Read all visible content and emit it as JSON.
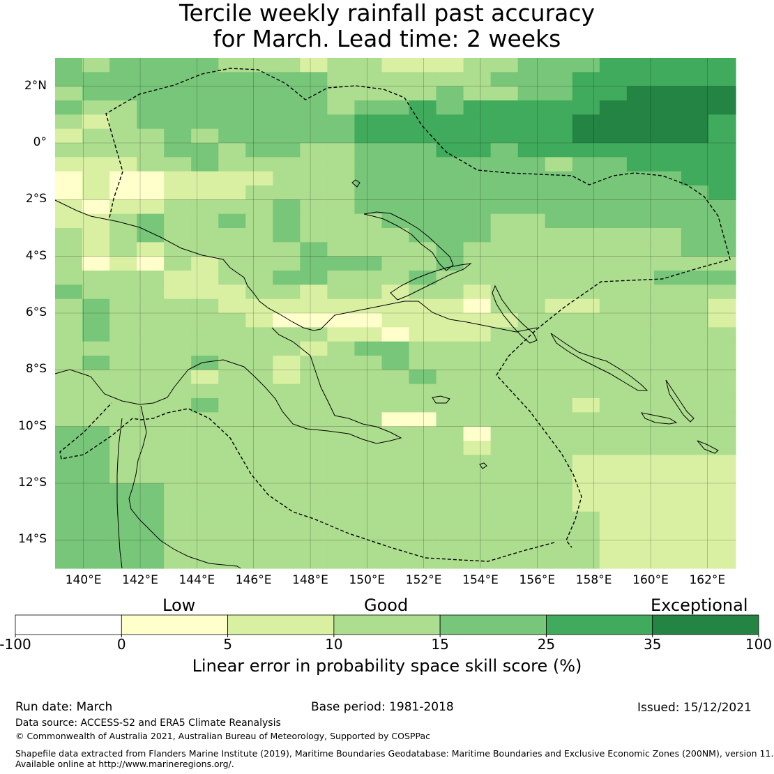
{
  "title": {
    "line1": "Tercile weekly rainfall past accuracy",
    "line2": "for March. Lead time: 2 weeks"
  },
  "map": {
    "y_axis_labels": [
      "2°N",
      "0°",
      "2°S",
      "4°S",
      "6°S",
      "8°S",
      "10°S",
      "12°S",
      "14°S"
    ],
    "x_axis_labels": [
      "140°E",
      "142°E",
      "144°E",
      "146°E",
      "148°E",
      "150°E",
      "152°E",
      "154°E",
      "156°E",
      "158°E",
      "160°E",
      "162°E"
    ],
    "lat_range": [
      -15,
      3
    ],
    "lon_range": [
      139,
      163
    ],
    "skill_rows_north_to_south": [
      "4344443332332223344455555",
      "4444444444333333444555555",
      "3444444444333343344556666",
      "4334444444344545555566666",
      "3234444444455555555666665",
      "2333434444455555555666665",
      "3333443443344455455555555",
      "2223343333344444443445555",
      "1211222233344444444444455",
      "1211222333344444444444445",
      "2122333343344444444444444",
      "2234334343334444334444444",
      "3234333343333444333333344",
      "3232333334333343333333344",
      "3121323334443343333333333",
      "3333223344333433333333444",
      "4333222332332332333333333",
      "3433332222222221332233332",
      "3433333211112222233333332",
      "3433333333221222333333333",
      "3333333332344333333333333",
      "3433343323334333333333333",
      "3333323323333433333333333",
      "3333333333333333333333333",
      "3333343333333333333233333",
      "3333333333331133333333333",
      "4433333333333331333333333",
      "4433333333333332333333333",
      "4433333333333333333222222",
      "4433333333333333333222222",
      "4444333333333333333222222",
      "4444333333333333333222222",
      "4444333333333333333322222",
      "4444333333333333333322222",
      "4444333333333333333322222",
      "4444333333333333333322222"
    ]
  },
  "colorbar": {
    "categories": [
      "Low",
      "Good",
      "Exceptional"
    ],
    "ticks": [
      "-100",
      "0",
      "5",
      "10",
      "15",
      "25",
      "35",
      "100"
    ],
    "colors": [
      "#ffffff",
      "#ffffcc",
      "#d9f0a3",
      "#addd8e",
      "#78c679",
      "#41ab5d",
      "#238443"
    ],
    "label": "Linear error in probability space skill score (%)"
  },
  "footer": {
    "run_date": "Run date: March",
    "base_period": "Base period: 1981-2018",
    "issued": "Issued: 15/12/2021",
    "data_source": "Data source: ACCESS-S2 and ERA5 Climate Reanalysis",
    "copyright": "© Commonwealth of Australia 2021, Australian Bureau of Meteorology, Supported by COSPPac",
    "shapefile_line1": "Shapefile data extracted from Flanders Marine Institute (2019), Maritime Boundaries Geodatabase: Maritime Boundaries and Exclusive Economic Zones (200NM), version 11.",
    "shapefile_line2": "Available online at http://www.marineregions.org/."
  }
}
